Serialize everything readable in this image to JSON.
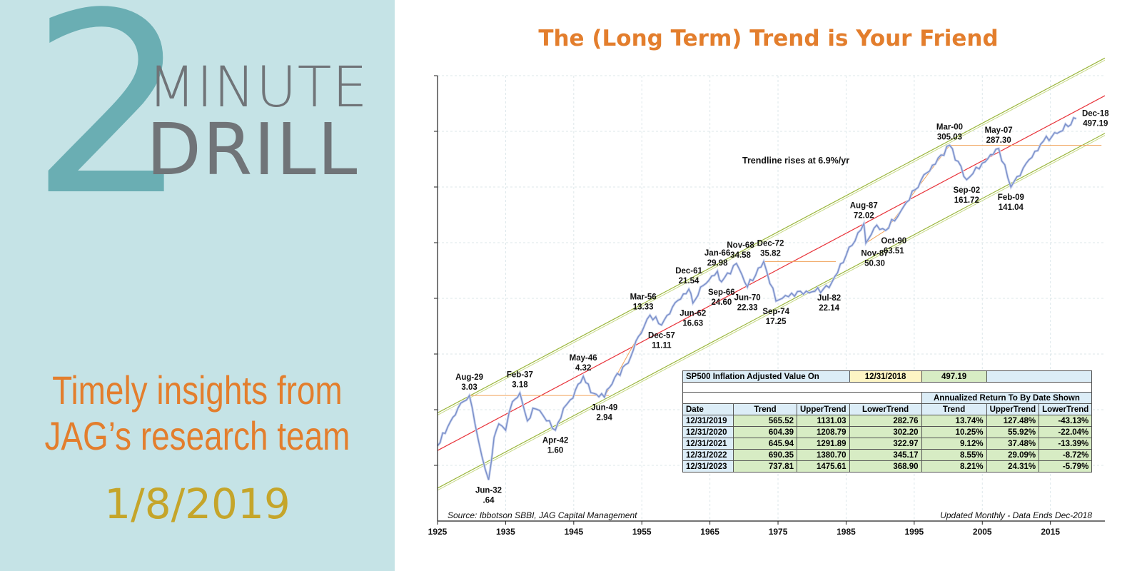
{
  "branding": {
    "number": "2",
    "word1": "MINUTE",
    "word2": "DRILL",
    "tagline_line1": "Timely insights from",
    "tagline_line2": "JAG’s research team",
    "date": "1/8/2019"
  },
  "colors": {
    "panel_bg": "#c5e3e6",
    "accent_orange": "#e37e2d",
    "teal": "#6aaeb3",
    "gray": "#707478",
    "gold": "#c5a52a",
    "series_blue": "#7a8fc9",
    "trend_red": "#e8333a",
    "band_green": "#9ab63a"
  },
  "chart_data": {
    "type": "line",
    "title": "The (Long Term) Trend is Your Friend",
    "scale": "log",
    "x_ticks": [
      "1925",
      "1935",
      "1945",
      "1955",
      "1965",
      "1975",
      "1985",
      "1995",
      "2005",
      "2015"
    ],
    "xlim": [
      1925,
      2023
    ],
    "ylim": [
      0.3,
      1100
    ],
    "annotation": "Trendline rises at 6.9%/yr",
    "source": "Source: Ibbotson SBBI, JAG Capital Management",
    "note": "Updated Monthly - Data Ends Dec-2018",
    "trend": {
      "start_year": 1925,
      "start_value": 1.1,
      "growth": 0.069,
      "upper_factor": 2.0,
      "lower_factor": 0.5
    },
    "series": [
      {
        "name": "SP500 Inflation Adjusted Value",
        "points": [
          [
            1925,
            1.2
          ],
          [
            1926.5,
            1.7
          ],
          [
            1928,
            2.4
          ],
          [
            1929.67,
            3.03
          ],
          [
            1930.5,
            1.8
          ],
          [
            1931.5,
            1.0
          ],
          [
            1932.5,
            0.64
          ],
          [
            1933.3,
            1.4
          ],
          [
            1934,
            1.8
          ],
          [
            1935,
            1.6
          ],
          [
            1936,
            2.7
          ],
          [
            1937.1,
            3.18
          ],
          [
            1938.2,
            1.9
          ],
          [
            1939,
            2.4
          ],
          [
            1940,
            2.3
          ],
          [
            1941,
            1.9
          ],
          [
            1942.3,
            1.6
          ],
          [
            1943.5,
            2.4
          ],
          [
            1944.5,
            2.8
          ],
          [
            1946.4,
            4.32
          ],
          [
            1947.5,
            3.2
          ],
          [
            1949.5,
            2.94
          ],
          [
            1951,
            4.2
          ],
          [
            1953,
            5.5
          ],
          [
            1954.5,
            9.0
          ],
          [
            1956.2,
            13.33
          ],
          [
            1957.9,
            11.11
          ],
          [
            1959.5,
            15.5
          ],
          [
            1961.9,
            21.54
          ],
          [
            1962.5,
            16.63
          ],
          [
            1964,
            23.0
          ],
          [
            1966.1,
            29.98
          ],
          [
            1966.7,
            24.6
          ],
          [
            1968.9,
            34.58
          ],
          [
            1970.5,
            22.33
          ],
          [
            1972.9,
            35.82
          ],
          [
            1974.7,
            17.25
          ],
          [
            1977,
            20.0
          ],
          [
            1980,
            20.5
          ],
          [
            1982.5,
            22.14
          ],
          [
            1985,
            40.0
          ],
          [
            1987.6,
            72.02
          ],
          [
            1987.9,
            50.3
          ],
          [
            1989.5,
            70.0
          ],
          [
            1990.8,
            63.51
          ],
          [
            1993,
            90.0
          ],
          [
            1996,
            160.0
          ],
          [
            2000.2,
            305.03
          ],
          [
            2002.7,
            161.72
          ],
          [
            2005,
            220.0
          ],
          [
            2007.4,
            287.3
          ],
          [
            2009.2,
            141.04
          ],
          [
            2011,
            200.0
          ],
          [
            2014,
            330.0
          ],
          [
            2016,
            380.0
          ],
          [
            2018.8,
            497.19
          ]
        ]
      }
    ],
    "labels": [
      {
        "date": "Aug-29",
        "value": "3.03",
        "x": 1929.67,
        "y": 3.03,
        "pos": "above"
      },
      {
        "date": "Jun-32",
        "value": ".64",
        "x": 1932.5,
        "y": 0.64,
        "pos": "below"
      },
      {
        "date": "Feb-37",
        "value": "3.18",
        "x": 1937.1,
        "y": 3.18,
        "pos": "above"
      },
      {
        "date": "Apr-42",
        "value": "1.60",
        "x": 1942.3,
        "y": 1.6,
        "pos": "below"
      },
      {
        "date": "May-46",
        "value": "4.32",
        "x": 1946.4,
        "y": 4.32,
        "pos": "above"
      },
      {
        "date": "Jun-49",
        "value": "2.94",
        "x": 1949.5,
        "y": 2.94,
        "pos": "below"
      },
      {
        "date": "Mar-56",
        "value": "13.33",
        "x": 1955.2,
        "y": 13.33,
        "pos": "above"
      },
      {
        "date": "Dec-57",
        "value": "11.11",
        "x": 1957.9,
        "y": 11.11,
        "pos": "below"
      },
      {
        "date": "Dec-61",
        "value": "21.54",
        "x": 1961.9,
        "y": 21.54,
        "pos": "above"
      },
      {
        "date": "Jun-62",
        "value": "16.63",
        "x": 1962.5,
        "y": 16.63,
        "pos": "below"
      },
      {
        "date": "Jan-66",
        "value": "29.98",
        "x": 1966.1,
        "y": 29.98,
        "pos": "above"
      },
      {
        "date": "Sep-66",
        "value": "24.60",
        "x": 1966.7,
        "y": 24.6,
        "pos": "below"
      },
      {
        "date": "Nov-68",
        "value": "34.58",
        "x": 1969.5,
        "y": 34.58,
        "pos": "above"
      },
      {
        "date": "Jun-70",
        "value": "22.33",
        "x": 1970.5,
        "y": 22.33,
        "pos": "below"
      },
      {
        "date": "Dec-72",
        "value": "35.82",
        "x": 1973.9,
        "y": 35.82,
        "pos": "above"
      },
      {
        "date": "Sep-74",
        "value": "17.25",
        "x": 1974.7,
        "y": 17.25,
        "pos": "below"
      },
      {
        "date": "Jul-82",
        "value": "22.14",
        "x": 1982.5,
        "y": 22.14,
        "pos": "below"
      },
      {
        "date": "Aug-87",
        "value": "72.02",
        "x": 1987.6,
        "y": 72.02,
        "pos": "above"
      },
      {
        "date": "Nov-87",
        "value": "50.30",
        "x": 1989.2,
        "y": 50.3,
        "pos": "below"
      },
      {
        "date": "Oct-90",
        "value": "63.51",
        "x": 1992.0,
        "y": 63.51,
        "pos": "below"
      },
      {
        "date": "Mar-00",
        "value": "305.03",
        "x": 2000.2,
        "y": 305.03,
        "pos": "above"
      },
      {
        "date": "Sep-02",
        "value": "161.72",
        "x": 2002.7,
        "y": 161.72,
        "pos": "below"
      },
      {
        "date": "May-07",
        "value": "287.30",
        "x": 2007.4,
        "y": 287.3,
        "pos": "above"
      },
      {
        "date": "Feb-09",
        "value": "141.04",
        "x": 2009.2,
        "y": 141.04,
        "pos": "below"
      },
      {
        "date": "Dec-18",
        "value": "497.19",
        "x": 2021.2,
        "y": 497.19,
        "pos": "right"
      }
    ],
    "table": {
      "title": "SP500 Inflation Adjusted Value On",
      "as_of_date": "12/31/2018",
      "as_of_value": "497.19",
      "group_header": "Annualized Return To By Date Shown",
      "columns": [
        "Date",
        "Trend",
        "UpperTrend",
        "LowerTrend",
        "Trend",
        "UpperTrend",
        "LowerTrend"
      ],
      "rows": [
        [
          "12/31/2019",
          "565.52",
          "1131.03",
          "282.76",
          "13.74%",
          "127.48%",
          "-43.13%"
        ],
        [
          "12/31/2020",
          "604.39",
          "1208.79",
          "302.20",
          "10.25%",
          "55.92%",
          "-22.04%"
        ],
        [
          "12/31/2021",
          "645.94",
          "1291.89",
          "322.97",
          "9.12%",
          "37.48%",
          "-13.39%"
        ],
        [
          "12/31/2022",
          "690.35",
          "1380.70",
          "345.17",
          "8.55%",
          "29.09%",
          "-8.72%"
        ],
        [
          "12/31/2023",
          "737.81",
          "1475.61",
          "368.90",
          "8.21%",
          "24.31%",
          "-5.79%"
        ]
      ]
    }
  }
}
